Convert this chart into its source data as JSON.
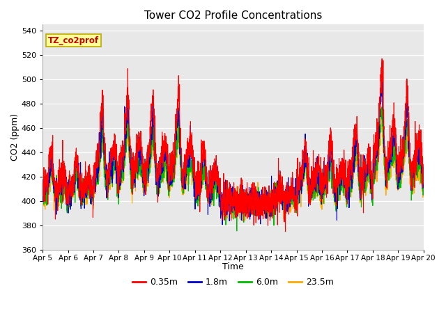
{
  "title": "Tower CO2 Profile Concentrations",
  "xlabel": "Time",
  "ylabel": "CO2 (ppm)",
  "ylim": [
    360,
    545
  ],
  "yticks": [
    360,
    380,
    400,
    420,
    440,
    460,
    480,
    500,
    520,
    540
  ],
  "series_labels": [
    "0.35m",
    "1.8m",
    "6.0m",
    "23.5m"
  ],
  "series_colors": [
    "#ff0000",
    "#0000cc",
    "#00bb00",
    "#ffaa00"
  ],
  "x_tick_labels": [
    "Apr 5",
    "Apr 6",
    "Apr 7",
    "Apr 8",
    "Apr 9",
    "Apr 10",
    "Apr 11",
    "Apr 12",
    "Apr 13",
    "Apr 14",
    "Apr 15",
    "Apr 16",
    "Apr 17",
    "Apr 18",
    "Apr 19",
    "Apr 20"
  ],
  "annotation_text": "TZ_co2prof",
  "annotation_bg": "#ffff99",
  "annotation_border": "#bbaa00",
  "plot_bg": "#e8e8e8",
  "line_width": 0.8,
  "n_points": 1500,
  "base_co2": 395,
  "seed": 7
}
